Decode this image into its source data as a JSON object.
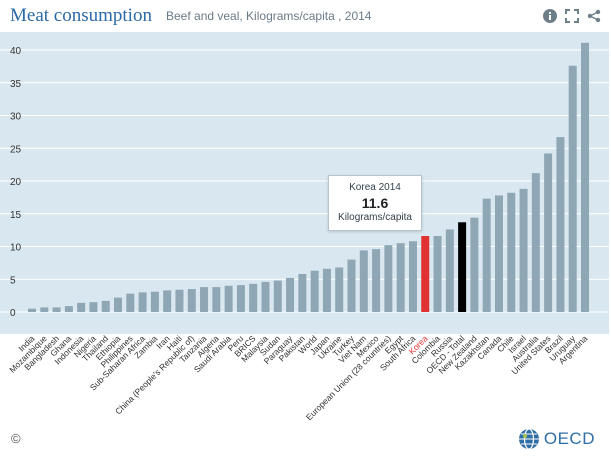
{
  "header": {
    "title": "Meat consumption",
    "subtitle": "Beef and veal, Kilograms/capita , 2014",
    "icons": [
      "info-icon",
      "expand-icon",
      "share-icon"
    ]
  },
  "tooltip": {
    "label": "Korea 2014",
    "value": "11.6",
    "unit": "Kilograms/capita"
  },
  "footer": {
    "copyright": "©",
    "logo_text": "OECD"
  },
  "colors": {
    "plot_bg": "#d9e8f0",
    "bar": "#8fa6b4",
    "highlight": "#e03232",
    "oecd_total": "#000000",
    "korea_label": "#e03232",
    "title": "#2b6aa6"
  },
  "chart_data": {
    "type": "bar",
    "title": "Meat consumption",
    "subtitle": "Beef and veal, Kilograms/capita , 2014",
    "xlabel": "",
    "ylabel": "",
    "ylim": [
      -2,
      43
    ],
    "yticks": [
      0,
      5,
      10,
      15,
      20,
      25,
      30,
      35,
      40
    ],
    "grid": true,
    "categories": [
      "India",
      "Mozambique",
      "Bangladesh",
      "Ghana",
      "Indonesia",
      "Nigeria",
      "Thailand",
      "Ethiopia",
      "Philippines",
      "Sub-Saharan Africa",
      "Zambia",
      "Iran",
      "Haiti",
      "China (People's Republic of)",
      "Tanzania",
      "Algeria",
      "Saudi Arabia",
      "Peru",
      "BRICS",
      "Malaysia",
      "Sudan",
      "Paraguay",
      "Pakistan",
      "World",
      "Japan",
      "Ukraine",
      "Turkey",
      "Viet Nam",
      "Mexico",
      "European Union (28 countries)",
      "Egypt",
      "South Africa",
      "Korea",
      "Colombia",
      "Russia",
      "OECD - Total",
      "New Zealand",
      "Kazakhstan",
      "Canada",
      "Chile",
      "Israel",
      "Australia",
      "United States",
      "Brazil",
      "Uruguay",
      "Argentina"
    ],
    "values": [
      0.5,
      0.7,
      0.7,
      0.9,
      1.4,
      1.5,
      1.7,
      2.2,
      2.8,
      3.0,
      3.1,
      3.3,
      3.4,
      3.5,
      3.8,
      3.8,
      4.0,
      4.1,
      4.3,
      4.6,
      4.8,
      5.2,
      5.8,
      6.3,
      6.6,
      6.8,
      8.0,
      9.4,
      9.6,
      10.2,
      10.5,
      10.8,
      11.6,
      11.6,
      12.6,
      13.7,
      14.4,
      17.3,
      17.8,
      18.2,
      18.8,
      21.2,
      24.2,
      26.7,
      37.6,
      41.1
    ],
    "highlight": "Korea",
    "reference": "OECD - Total"
  }
}
